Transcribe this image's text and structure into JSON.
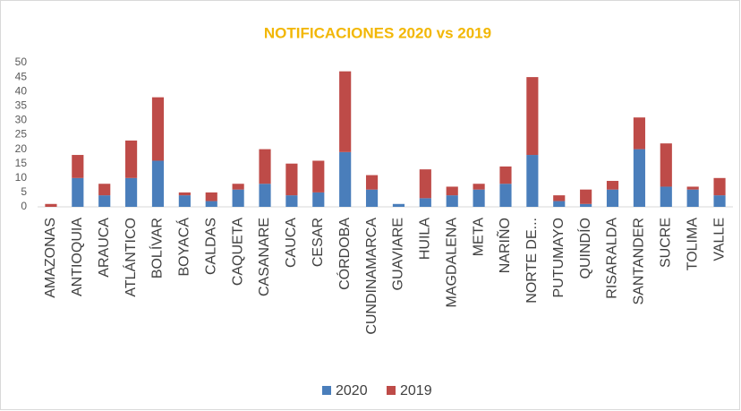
{
  "chart_data": {
    "type": "stacked_bar",
    "title": "NOTIFICACIONES  2020 vs 2019",
    "categories": [
      "AMAZONAS",
      "ANTIOQUIA",
      "ARAUCA",
      "ATLÁNTICO",
      "BOLÍVAR",
      "BOYACÁ",
      "CALDAS",
      "CAQUETA",
      "CASANARE",
      "CAUCA",
      "CESAR",
      "CÓRDOBA",
      "CUNDINAMARCA",
      "GUAVIARE",
      "HUILA",
      "MAGDALENA",
      "META",
      "NARIÑO",
      "NORTE DE...",
      "PUTUMAYO",
      "QUINDÍO",
      "RISARALDA",
      "SANTANDER",
      "SUCRE",
      "TOLIMA",
      "VALLE"
    ],
    "series": [
      {
        "name": "2020",
        "color": "#4a7ebb",
        "values": [
          0,
          10,
          4,
          10,
          16,
          4,
          2,
          6,
          8,
          4,
          5,
          19,
          6,
          1,
          3,
          4,
          6,
          8,
          18,
          2,
          1,
          6,
          20,
          7,
          6,
          4
        ]
      },
      {
        "name": "2019",
        "color": "#be4b48",
        "values": [
          1,
          8,
          4,
          13,
          22,
          1,
          3,
          2,
          12,
          11,
          11,
          28,
          5,
          0,
          10,
          3,
          2,
          6,
          27,
          2,
          5,
          3,
          11,
          15,
          1,
          6
        ]
      }
    ],
    "ylim": [
      0,
      50
    ],
    "yticks": [
      0,
      5,
      10,
      15,
      20,
      25,
      30,
      35,
      40,
      45,
      50
    ],
    "legend": "bottom"
  }
}
